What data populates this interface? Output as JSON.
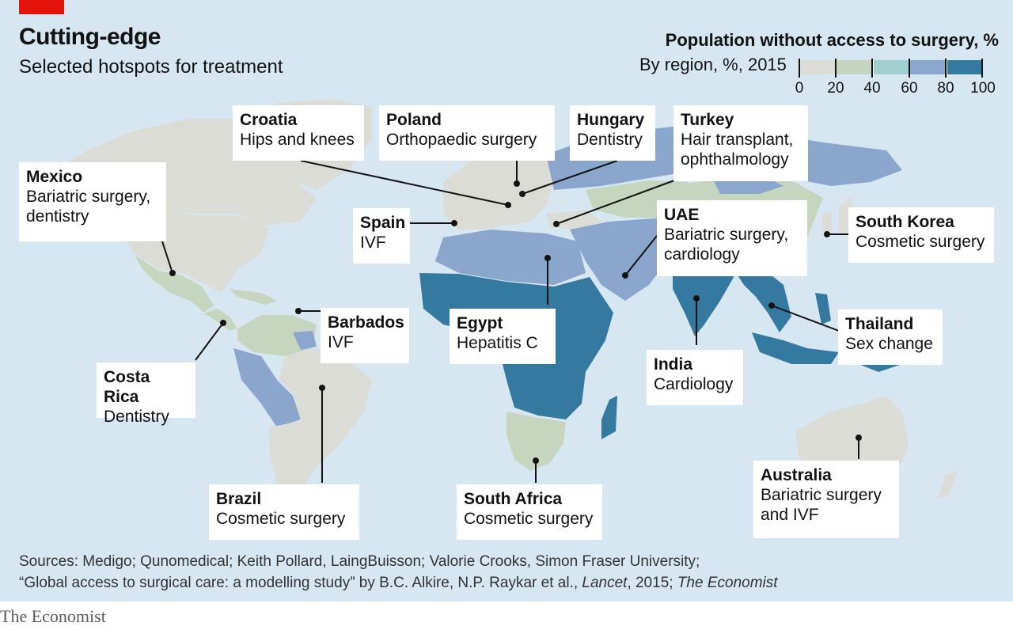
{
  "header": {
    "title": "Cutting-edge",
    "subtitle": "Selected hotspots for treatment"
  },
  "legend": {
    "title": "Population without access to surgery, %",
    "subtitle": "By region, %, 2015",
    "ticks": [
      "0",
      "20",
      "40",
      "60",
      "80",
      "100"
    ],
    "colors": [
      "#dcdcd6",
      "#c6d5bd",
      "#9fcfce",
      "#8ba6cc",
      "#3479a0"
    ]
  },
  "map": {
    "colors": {
      "ocean": "#d7e7f1",
      "band_0_20": "#dcdcd6",
      "band_20_40": "#c6d5bd",
      "band_40_60": "#9fcfce",
      "band_60_80": "#8ba6cc",
      "band_80_100": "#3479a0",
      "leader": "#121212"
    },
    "hotspots": [
      {
        "country": "Mexico",
        "treatment": "Bariatric surgery,\ndentistry"
      },
      {
        "country": "Croatia",
        "treatment": "Hips and knees"
      },
      {
        "country": "Poland",
        "treatment": "Orthopaedic surgery"
      },
      {
        "country": "Hungary",
        "treatment": "Dentistry"
      },
      {
        "country": "Turkey",
        "treatment": "Hair transplant,\nophthalmology"
      },
      {
        "country": "Spain",
        "treatment": "IVF"
      },
      {
        "country": "UAE",
        "treatment": "Bariatric surgery,\ncardiology"
      },
      {
        "country": "South Korea",
        "treatment": "Cosmetic surgery"
      },
      {
        "country": "Barbados",
        "treatment": "IVF"
      },
      {
        "country": "Egypt",
        "treatment": "Hepatitis C"
      },
      {
        "country": "Thailand",
        "treatment": "Sex change"
      },
      {
        "country": "Costa Rica",
        "treatment": "Dentistry"
      },
      {
        "country": "India",
        "treatment": "Cardiology"
      },
      {
        "country": "Brazil",
        "treatment": "Cosmetic surgery"
      },
      {
        "country": "South Africa",
        "treatment": "Cosmetic surgery"
      },
      {
        "country": "Australia",
        "treatment": "Bariatric surgery\nand IVF"
      }
    ]
  },
  "footer": {
    "sources_line1": "Sources: Medigo; Qunomedical; Keith Pollard, LaingBuisson; Valorie Crooks, Simon Fraser University;",
    "sources_line2_a": "“Global access to surgical care: a modelling study” by B.C. Alkire, N.P. Raykar et al., ",
    "sources_line2_b": "Lancet",
    "sources_line2_c": ", 2015; ",
    "sources_line2_d": "The Economist",
    "brand": "The Economist"
  }
}
